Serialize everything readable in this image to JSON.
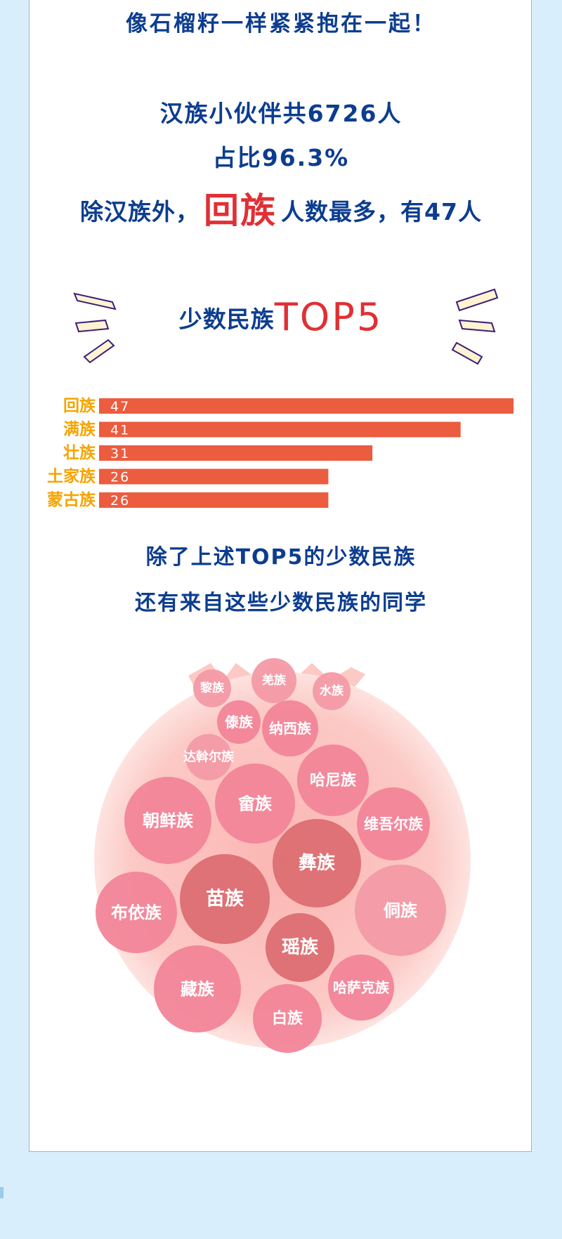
{
  "headline": "像石榴籽一样紧紧抱在一起！",
  "stats": {
    "han_count_line": "汉族小伙伴共6726人",
    "han_share_line": "占比96.3%",
    "hui_prefix": "除汉族外，",
    "hui_highlight": "回族",
    "hui_suffix": "人数最多，有47人"
  },
  "top5_title": {
    "prefix": "少数民族",
    "highlight": "TOP5"
  },
  "chart_data": {
    "type": "bar",
    "orientation": "horizontal",
    "categories": [
      "回族",
      "满族",
      "壮族",
      "土家族",
      "蒙古族"
    ],
    "values": [
      47,
      41,
      31,
      26,
      26
    ],
    "bar_color": "#ec5c3f",
    "label_color": "#f5a400"
  },
  "others_text": {
    "line1": "除了上述TOP5的少数民族",
    "line2": "还有来自这些少数民族的同学"
  },
  "bubbles": [
    "黎族",
    "羌族",
    "水族",
    "傣族",
    "纳西族",
    "达斡尔族",
    "哈尼族",
    "朝鲜族",
    "畲族",
    "维吾尔族",
    "彝族",
    "苗族",
    "布依族",
    "侗族",
    "瑶族",
    "藏族",
    "哈萨克族",
    "白族"
  ],
  "colors": {
    "background": "#d9eefc",
    "navy_text": "#0c3d8f",
    "highlight_red": "#e03035",
    "pomegranate_base": "#fcc8c4",
    "bubble_pink": "#f28599",
    "bubble_dark": "#dc6e72",
    "bubble_light": "#f39aa6"
  }
}
